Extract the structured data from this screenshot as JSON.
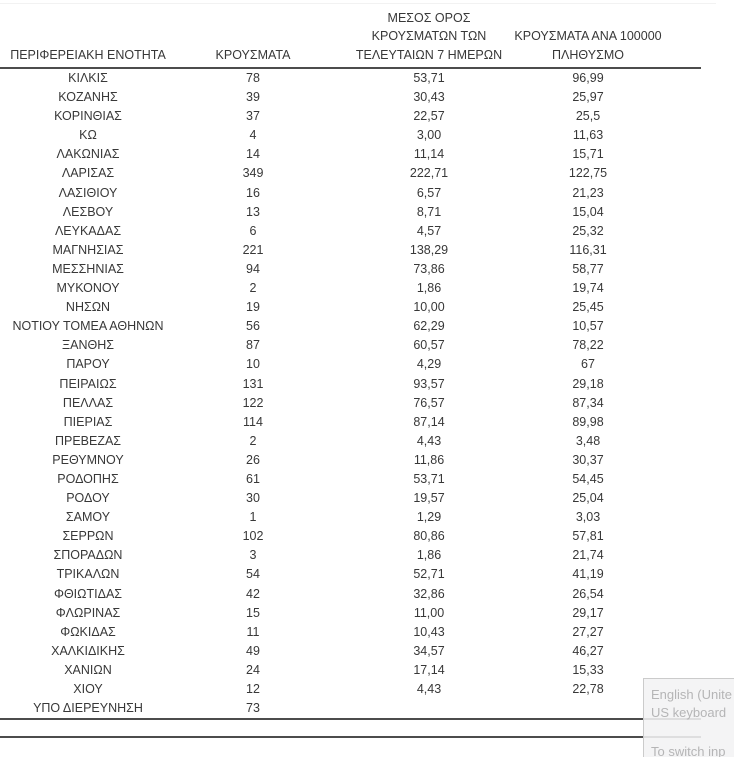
{
  "table": {
    "headers": {
      "region": "ΠΕΡΙΦΕΡΕΙΑΚΗ ΕΝΟΤΗΤΑ",
      "cases": "ΚΡΟΥΣΜΑΤΑ",
      "avg7_line1": "ΜΕΣΟΣ ΟΡΟΣ",
      "avg7_line2": "ΚΡΟΥΣΜΑΤΩΝ ΤΩΝ",
      "avg7_line3": "ΤΕΛΕΥΤΑΙΩΝ 7 ΗΜΕΡΩΝ",
      "per100k_line1": "ΚΡΟΥΣΜΑΤΑ ΑΝΑ 100000",
      "per100k_line2": "ΠΛΗΘΥΣΜΟ"
    },
    "rows": [
      [
        "ΚΙΛΚΙΣ",
        "78",
        "53,71",
        "96,99"
      ],
      [
        "ΚΟΖΑΝΗΣ",
        "39",
        "30,43",
        "25,97"
      ],
      [
        "ΚΟΡΙΝΘΙΑΣ",
        "37",
        "22,57",
        "25,5"
      ],
      [
        "ΚΩ",
        "4",
        "3,00",
        "11,63"
      ],
      [
        "ΛΑΚΩΝΙΑΣ",
        "14",
        "11,14",
        "15,71"
      ],
      [
        "ΛΑΡΙΣΑΣ",
        "349",
        "222,71",
        "122,75"
      ],
      [
        "ΛΑΣΙΘΙΟΥ",
        "16",
        "6,57",
        "21,23"
      ],
      [
        "ΛΕΣΒΟΥ",
        "13",
        "8,71",
        "15,04"
      ],
      [
        "ΛΕΥΚΑΔΑΣ",
        "6",
        "4,57",
        "25,32"
      ],
      [
        "ΜΑΓΝΗΣΙΑΣ",
        "221",
        "138,29",
        "116,31"
      ],
      [
        "ΜΕΣΣΗΝΙΑΣ",
        "94",
        "73,86",
        "58,77"
      ],
      [
        "ΜΥΚΟΝΟΥ",
        "2",
        "1,86",
        "19,74"
      ],
      [
        "ΝΗΣΩΝ",
        "19",
        "10,00",
        "25,45"
      ],
      [
        "ΝΟΤΙΟΥ ΤΟΜΕΑ ΑΘΗΝΩΝ",
        "56",
        "62,29",
        "10,57"
      ],
      [
        "ΞΑΝΘΗΣ",
        "87",
        "60,57",
        "78,22"
      ],
      [
        "ΠΑΡΟΥ",
        "10",
        "4,29",
        "67"
      ],
      [
        "ΠΕΙΡΑΙΩΣ",
        "131",
        "93,57",
        "29,18"
      ],
      [
        "ΠΕΛΛΑΣ",
        "122",
        "76,57",
        "87,34"
      ],
      [
        "ΠΙΕΡΙΑΣ",
        "114",
        "87,14",
        "89,98"
      ],
      [
        "ΠΡΕΒΕΖΑΣ",
        "2",
        "4,43",
        "3,48"
      ],
      [
        "ΡΕΘΥΜΝΟΥ",
        "26",
        "11,86",
        "30,37"
      ],
      [
        "ΡΟΔΟΠΗΣ",
        "61",
        "53,71",
        "54,45"
      ],
      [
        "ΡΟΔΟΥ",
        "30",
        "19,57",
        "25,04"
      ],
      [
        "ΣΑΜΟΥ",
        "1",
        "1,29",
        "3,03"
      ],
      [
        "ΣΕΡΡΩΝ",
        "102",
        "80,86",
        "57,81"
      ],
      [
        "ΣΠΟΡΑΔΩΝ",
        "3",
        "1,86",
        "21,74"
      ],
      [
        "ΤΡΙΚΑΛΩΝ",
        "54",
        "52,71",
        "41,19"
      ],
      [
        "ΦΘΙΩΤΙΔΑΣ",
        "42",
        "32,86",
        "26,54"
      ],
      [
        "ΦΛΩΡΙΝΑΣ",
        "15",
        "11,00",
        "29,17"
      ],
      [
        "ΦΩΚΙΔΑΣ",
        "11",
        "10,43",
        "27,27"
      ],
      [
        "ΧΑΛΚΙΔΙΚΗΣ",
        "49",
        "34,57",
        "46,27"
      ],
      [
        "ΧΑΝΙΩΝ",
        "24",
        "17,14",
        "15,33"
      ],
      [
        "ΧΙΟΥ",
        "12",
        "4,43",
        "22,78"
      ],
      [
        "ΥΠΟ ΔΙΕΡΕΥΝΗΣΗ",
        "73",
        "",
        ""
      ]
    ]
  },
  "keyboard_popup": {
    "language": "English (Unite",
    "layout": "US keyboard",
    "hint": "To switch inp"
  },
  "colors": {
    "table_text": "#383838",
    "table_rule": "#4c4c4c",
    "popup_bg": "#f3f3f4",
    "popup_border": "#cbcbcb",
    "popup_text": "#b5b5b6"
  }
}
